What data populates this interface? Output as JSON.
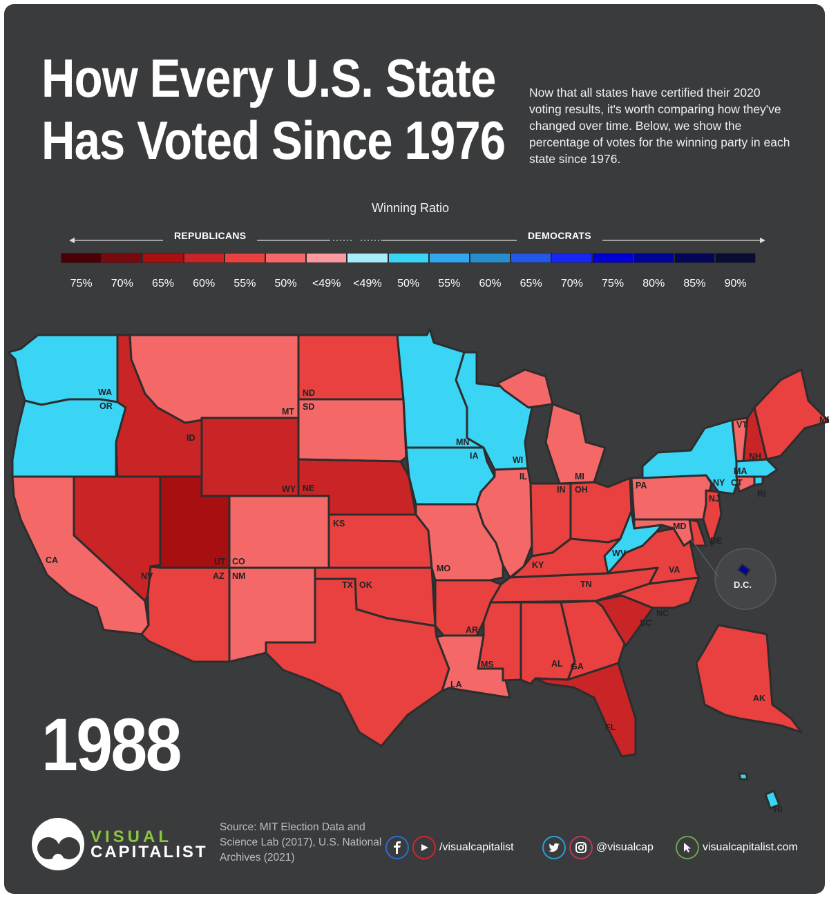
{
  "title": {
    "line1": "How Every U.S. State",
    "line2": "Has Voted Since 1976"
  },
  "intro": "Now that all states have certified their 2020 voting results, it's worth comparing how they've changed over time. Below, we show the percentage of votes for the winning party in each state since 1976.",
  "legend": {
    "title": "Winning Ratio",
    "left_label": "REPUBLICANS",
    "right_label": "DEMOCRATS",
    "ticks": [
      "75%",
      "70%",
      "65%",
      "60%",
      "55%",
      "50%",
      "<49%",
      "<49%",
      "50%",
      "55%",
      "60%",
      "65%",
      "70%",
      "75%",
      "80%",
      "85%",
      "90%"
    ],
    "colors": [
      "#4a0006",
      "#780a0f",
      "#a70f11",
      "#c92426",
      "#e8413f",
      "#f46868",
      "#fa9aa0",
      "#a6ecfb",
      "#3ad4f5",
      "#32a7ee",
      "#268ecb",
      "#2357e8",
      "#1727f5",
      "#0000d2",
      "#000398",
      "#040757",
      "#0a0d33"
    ]
  },
  "map_data": {
    "year": "1988",
    "states": [
      {
        "abbr": "WA",
        "ratio": "50%",
        "party": "Democrats"
      },
      {
        "abbr": "OR",
        "ratio": "50%",
        "party": "Democrats"
      },
      {
        "abbr": "CA",
        "ratio": "50%",
        "party": "Republicans"
      },
      {
        "abbr": "NV",
        "ratio": "60%",
        "party": "Republicans"
      },
      {
        "abbr": "ID",
        "ratio": "60%",
        "party": "Republicans"
      },
      {
        "abbr": "MT",
        "ratio": "50%",
        "party": "Republicans"
      },
      {
        "abbr": "WY",
        "ratio": "60%",
        "party": "Republicans"
      },
      {
        "abbr": "UT",
        "ratio": "65%",
        "party": "Republicans"
      },
      {
        "abbr": "AZ",
        "ratio": "55%",
        "party": "Republicans"
      },
      {
        "abbr": "CO",
        "ratio": "50%",
        "party": "Republicans"
      },
      {
        "abbr": "NM",
        "ratio": "50%",
        "party": "Republicans"
      },
      {
        "abbr": "ND",
        "ratio": "55%",
        "party": "Republicans"
      },
      {
        "abbr": "SD",
        "ratio": "50%",
        "party": "Republicans"
      },
      {
        "abbr": "NE",
        "ratio": "60%",
        "party": "Republicans"
      },
      {
        "abbr": "KS",
        "ratio": "55%",
        "party": "Republicans"
      },
      {
        "abbr": "OK",
        "ratio": "55%",
        "party": "Republicans"
      },
      {
        "abbr": "TX",
        "ratio": "55%",
        "party": "Republicans"
      },
      {
        "abbr": "MN",
        "ratio": "50%",
        "party": "Democrats"
      },
      {
        "abbr": "IA",
        "ratio": "50%",
        "party": "Democrats"
      },
      {
        "abbr": "MO",
        "ratio": "50%",
        "party": "Republicans"
      },
      {
        "abbr": "AR",
        "ratio": "55%",
        "party": "Republicans"
      },
      {
        "abbr": "LA",
        "ratio": "50%",
        "party": "Republicans"
      },
      {
        "abbr": "WI",
        "ratio": "50%",
        "party": "Democrats"
      },
      {
        "abbr": "IL",
        "ratio": "50%",
        "party": "Republicans"
      },
      {
        "abbr": "MI",
        "ratio": "50%",
        "party": "Republicans"
      },
      {
        "abbr": "IN",
        "ratio": "55%",
        "party": "Republicans"
      },
      {
        "abbr": "OH",
        "ratio": "55%",
        "party": "Republicans"
      },
      {
        "abbr": "KY",
        "ratio": "55%",
        "party": "Republicans"
      },
      {
        "abbr": "TN",
        "ratio": "55%",
        "party": "Republicans"
      },
      {
        "abbr": "MS",
        "ratio": "55%",
        "party": "Republicans"
      },
      {
        "abbr": "AL",
        "ratio": "55%",
        "party": "Republicans"
      },
      {
        "abbr": "GA",
        "ratio": "55%",
        "party": "Republicans"
      },
      {
        "abbr": "FL",
        "ratio": "60%",
        "party": "Republicans"
      },
      {
        "abbr": "SC",
        "ratio": "60%",
        "party": "Republicans"
      },
      {
        "abbr": "NC",
        "ratio": "55%",
        "party": "Republicans"
      },
      {
        "abbr": "VA",
        "ratio": "55%",
        "party": "Republicans"
      },
      {
        "abbr": "WV",
        "ratio": "50%",
        "party": "Democrats"
      },
      {
        "abbr": "PA",
        "ratio": "50%",
        "party": "Republicans"
      },
      {
        "abbr": "NY",
        "ratio": "50%",
        "party": "Democrats"
      },
      {
        "abbr": "VT",
        "ratio": "50%",
        "party": "Republicans"
      },
      {
        "abbr": "NH",
        "ratio": "60%",
        "party": "Republicans"
      },
      {
        "abbr": "ME",
        "ratio": "55%",
        "party": "Republicans"
      },
      {
        "abbr": "MA",
        "ratio": "50%",
        "party": "Democrats"
      },
      {
        "abbr": "RI",
        "ratio": "50%",
        "party": "Democrats"
      },
      {
        "abbr": "CT",
        "ratio": "50%",
        "party": "Republicans"
      },
      {
        "abbr": "NJ",
        "ratio": "55%",
        "party": "Republicans"
      },
      {
        "abbr": "DE",
        "ratio": "55%",
        "party": "Republicans"
      },
      {
        "abbr": "MD",
        "ratio": "50%",
        "party": "Republicans"
      },
      {
        "abbr": "AK",
        "ratio": "55%",
        "party": "Republicans"
      },
      {
        "abbr": "HI",
        "ratio": "50%",
        "party": "Democrats"
      },
      {
        "abbr": "D.C.",
        "ratio": "80%",
        "party": "Democrats"
      }
    ]
  },
  "footer": {
    "brand_line1": "VISUAL",
    "brand_line2": "CAPITALIST",
    "source": "Source: MIT Election Data and Science Lab (2017), U.S. National Archives (2021)",
    "handle1": "/visualcapitalist",
    "handle2": "@visualcap",
    "website": "visualcapitalist.com"
  }
}
